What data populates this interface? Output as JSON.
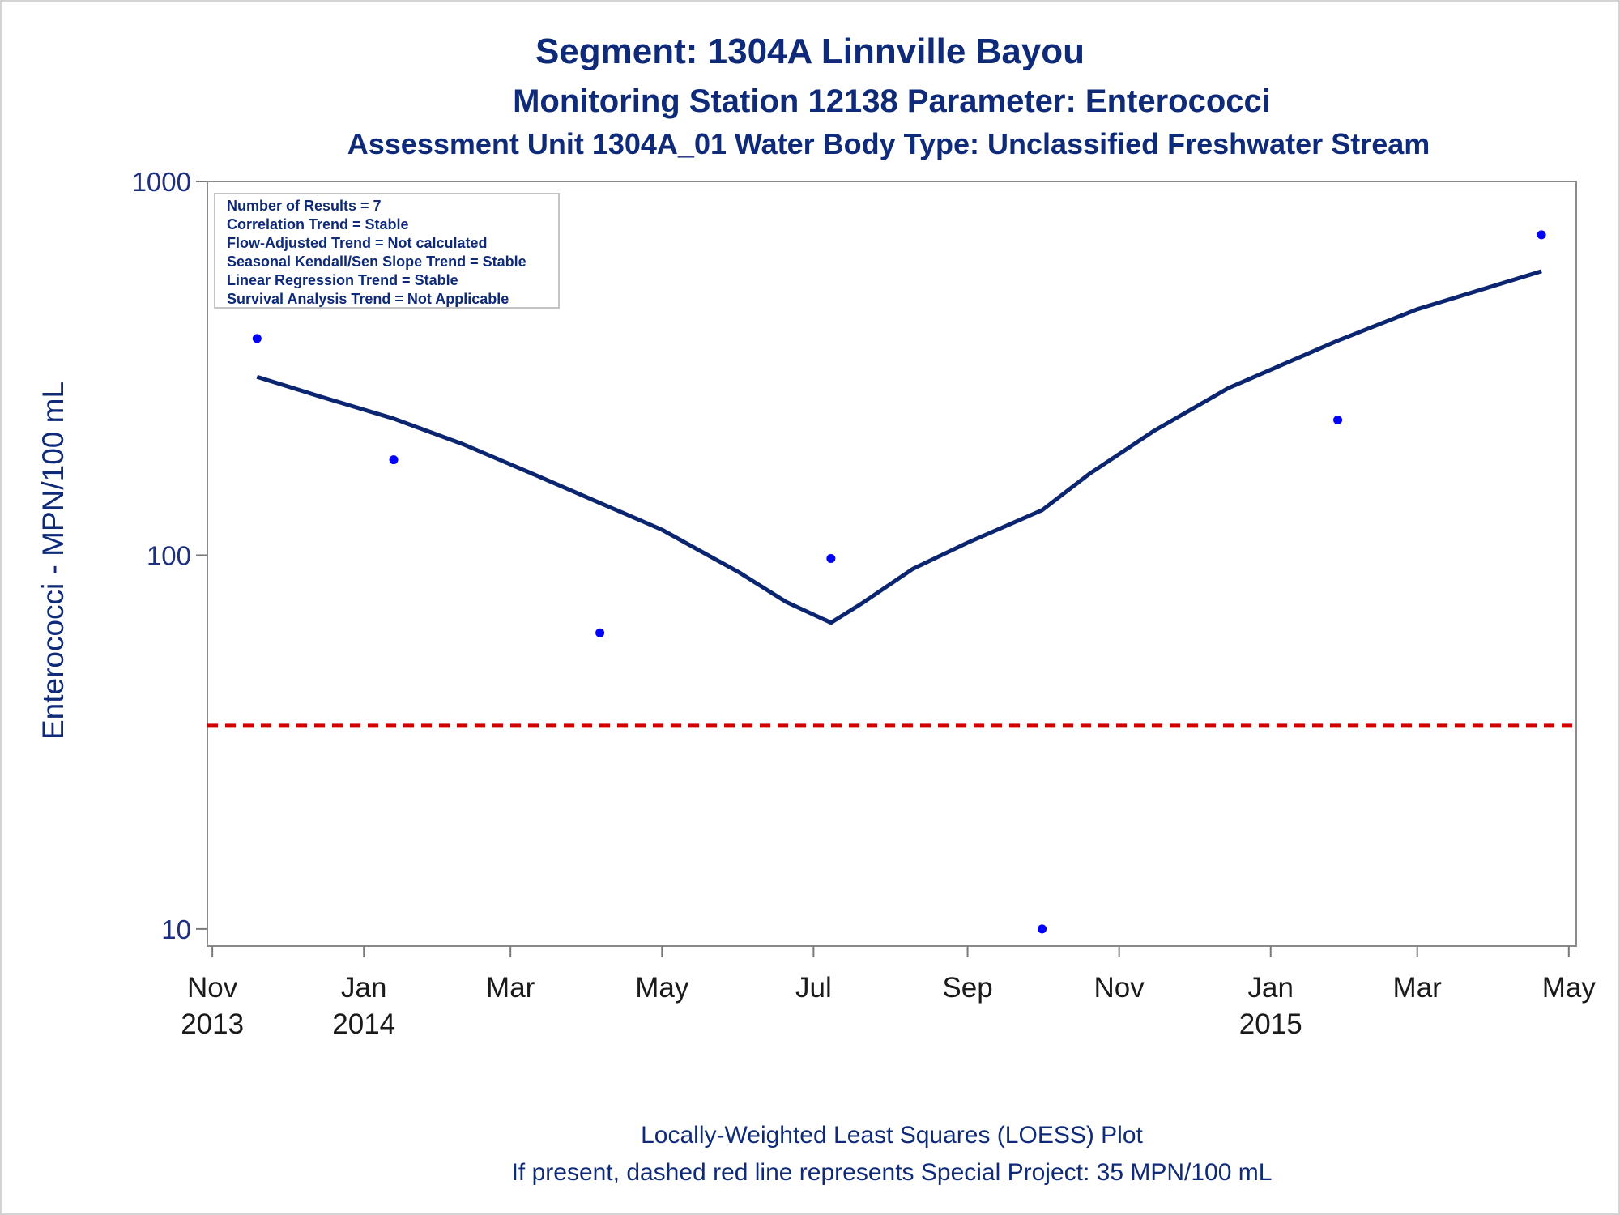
{
  "chart_data": {
    "type": "scatter",
    "title": "Segment: 1304A  Linnville Bayou",
    "subtitle": "Monitoring Station 12138 Parameter: Enterococci",
    "subtitle2": "Assessment Unit 1304A_01   Water Body Type: Unclassified Freshwater Stream",
    "ylabel": "Enterococci - MPN/100 mL",
    "xlabel": "",
    "yscale": "log",
    "ylim": [
      9,
      1000
    ],
    "xlim": [
      "2013-10-30",
      "2015-05-04"
    ],
    "yticks": [
      {
        "value": 10,
        "label": "10"
      },
      {
        "value": 100,
        "label": "100"
      },
      {
        "value": 1000,
        "label": "1000"
      }
    ],
    "xticks": [
      {
        "date": "2013-11-01",
        "label": "Nov",
        "sublabel": "2013"
      },
      {
        "date": "2014-01-01",
        "label": "Jan",
        "sublabel": "2014"
      },
      {
        "date": "2014-03-01",
        "label": "Mar",
        "sublabel": ""
      },
      {
        "date": "2014-05-01",
        "label": "May",
        "sublabel": ""
      },
      {
        "date": "2014-07-01",
        "label": "Jul",
        "sublabel": ""
      },
      {
        "date": "2014-09-01",
        "label": "Sep",
        "sublabel": ""
      },
      {
        "date": "2014-11-01",
        "label": "Nov",
        "sublabel": ""
      },
      {
        "date": "2015-01-01",
        "label": "Jan",
        "sublabel": "2015"
      },
      {
        "date": "2015-03-01",
        "label": "Mar",
        "sublabel": ""
      },
      {
        "date": "2015-05-01",
        "label": "May",
        "sublabel": ""
      }
    ],
    "series": [
      {
        "type": "scatter",
        "color": "#0000ff",
        "points": [
          {
            "x": "2013-11-19",
            "y": 380
          },
          {
            "x": "2014-01-13",
            "y": 180
          },
          {
            "x": "2014-04-06",
            "y": 62
          },
          {
            "x": "2014-07-08",
            "y": 98
          },
          {
            "x": "2014-10-01",
            "y": 10
          },
          {
            "x": "2015-01-28",
            "y": 230
          },
          {
            "x": "2015-04-20",
            "y": 720
          }
        ]
      },
      {
        "type": "line",
        "color": "#0b2570",
        "points": [
          {
            "x": "2013-11-19",
            "y": 300
          },
          {
            "x": "2013-12-15",
            "y": 265
          },
          {
            "x": "2014-01-13",
            "y": 232
          },
          {
            "x": "2014-02-10",
            "y": 198
          },
          {
            "x": "2014-03-10",
            "y": 165
          },
          {
            "x": "2014-04-06",
            "y": 138
          },
          {
            "x": "2014-05-01",
            "y": 117
          },
          {
            "x": "2014-06-01",
            "y": 90
          },
          {
            "x": "2014-06-20",
            "y": 75
          },
          {
            "x": "2014-07-08",
            "y": 66
          },
          {
            "x": "2014-07-20",
            "y": 74
          },
          {
            "x": "2014-08-10",
            "y": 92
          },
          {
            "x": "2014-09-01",
            "y": 108
          },
          {
            "x": "2014-10-01",
            "y": 132
          },
          {
            "x": "2014-10-20",
            "y": 165
          },
          {
            "x": "2014-11-15",
            "y": 215
          },
          {
            "x": "2014-12-15",
            "y": 280
          },
          {
            "x": "2015-01-28",
            "y": 375
          },
          {
            "x": "2015-03-01",
            "y": 455
          },
          {
            "x": "2015-04-20",
            "y": 575
          }
        ]
      },
      {
        "type": "reference-line",
        "color": "#d00000",
        "style": "dashed",
        "y": 35
      }
    ],
    "legend_box": {
      "placement": "top-left",
      "lines": [
        "Number of Results = 7",
        "Correlation Trend = Stable",
        "Flow-Adjusted Trend = Not calculated",
        "Seasonal Kendall/Sen Slope Trend = Stable",
        "Linear Regression Trend = Stable",
        "Survival Analysis Trend = Not Applicable"
      ]
    },
    "footnotes": [
      "Locally-Weighted Least Squares (LOESS) Plot",
      "If present, dashed red line represents Special Project: 35 MPN/100 mL"
    ],
    "grid": false
  }
}
